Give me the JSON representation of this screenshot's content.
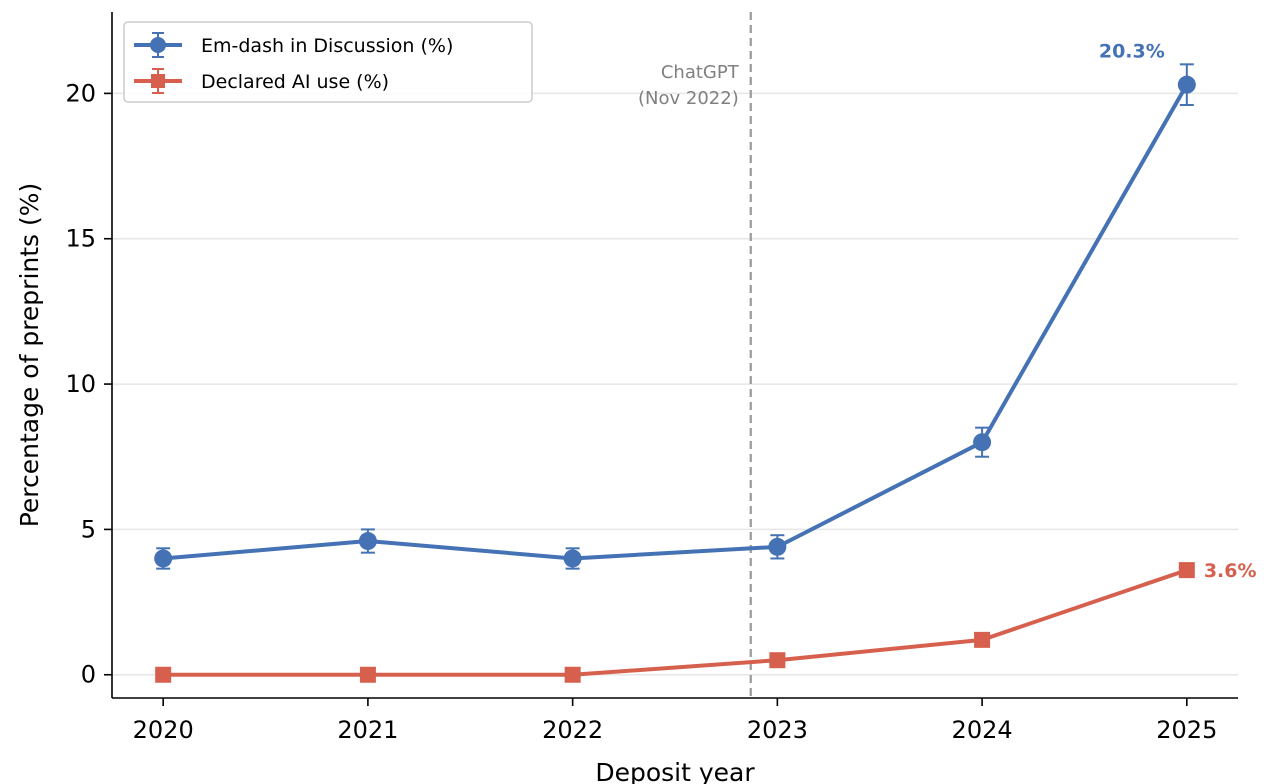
{
  "chart_data": {
    "type": "line",
    "xlabel": "Deposit year",
    "ylabel": "Percentage of preprints (%)",
    "categories": [
      "2020",
      "2021",
      "2022",
      "2023",
      "2024",
      "2025"
    ],
    "x": [
      2020,
      2021,
      2022,
      2023,
      2024,
      2025
    ],
    "xlim": [
      2019.75,
      2025.25
    ],
    "ylim": [
      -0.8,
      22.8
    ],
    "yticks": [
      "0",
      "5",
      "10",
      "15",
      "20"
    ],
    "ytick_values": [
      0,
      5,
      10,
      15,
      20
    ],
    "grid": "horizontal",
    "legend_position": "top-left",
    "series": [
      {
        "name": "Em-dash in Discussion (%)",
        "color": "#4472b4",
        "marker": "circle",
        "values": [
          4.0,
          4.6,
          4.0,
          4.4,
          8.0,
          20.3
        ],
        "err": [
          0.35,
          0.4,
          0.35,
          0.4,
          0.5,
          0.7
        ]
      },
      {
        "name": "Declared AI use (%)",
        "color": "#d6604d",
        "marker": "square",
        "values": [
          0.0,
          0.0,
          0.0,
          0.5,
          1.2,
          3.6
        ],
        "err": [
          0.05,
          0.05,
          0.05,
          0.1,
          0.15,
          0.2
        ]
      }
    ],
    "vline": {
      "x": 2022.87,
      "label_line1": "ChatGPT",
      "label_line2": "(Nov 2022)",
      "color": "#999999"
    },
    "end_labels": [
      "20.3%",
      "3.6%"
    ]
  }
}
